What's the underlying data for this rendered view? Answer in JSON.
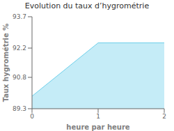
{
  "chart_data": {
    "type": "area",
    "title": "Evolution du taux d’hygrométrie",
    "x_label": "heure par heure",
    "y_label": "Taux hygrométrie %",
    "x": [
      0,
      1,
      2
    ],
    "values": [
      89.9,
      92.45,
      92.45
    ],
    "xlim": [
      0,
      2
    ],
    "xticks": [
      0,
      1,
      2
    ],
    "ylim": [
      89.3,
      93.7
    ],
    "yticks": [
      89.3,
      90.8,
      92.2,
      93.7
    ],
    "color": "#6dcfea",
    "grid": false
  }
}
